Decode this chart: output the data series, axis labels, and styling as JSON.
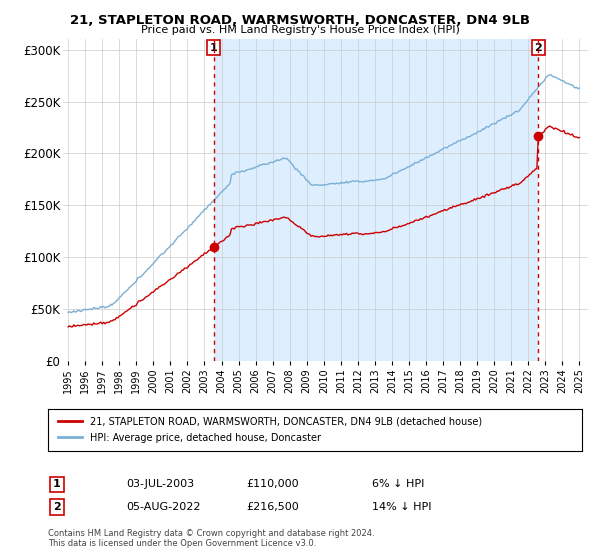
{
  "title1": "21, STAPLETON ROAD, WARMSWORTH, DONCASTER, DN4 9LB",
  "title2": "Price paid vs. HM Land Registry's House Price Index (HPI)",
  "ylabel_ticks": [
    "£0",
    "£50K",
    "£100K",
    "£150K",
    "£200K",
    "£250K",
    "£300K"
  ],
  "ytick_values": [
    0,
    50000,
    100000,
    150000,
    200000,
    250000,
    300000
  ],
  "ylim": [
    0,
    310000
  ],
  "sale1_year": 2003.542,
  "sale1_value": 110000,
  "sale2_year": 2022.583,
  "sale2_value": 216500,
  "legend_red_label": "21, STAPLETON ROAD, WARMSWORTH, DONCASTER, DN4 9LB (detached house)",
  "legend_blue_label": "HPI: Average price, detached house, Doncaster",
  "annot1_date": "03-JUL-2003",
  "annot1_price": "£110,000",
  "annot1_hpi": "6% ↓ HPI",
  "annot2_date": "05-AUG-2022",
  "annot2_price": "£216,500",
  "annot2_hpi": "14% ↓ HPI",
  "copyright": "Contains HM Land Registry data © Crown copyright and database right 2024.\nThis data is licensed under the Open Government Licence v3.0.",
  "hpi_color": "#7bafd4",
  "sale_color": "#cc0000",
  "dashed_color": "#cc0000",
  "bg_color": "#ffffff",
  "grid_color": "#cccccc",
  "shaded_bg": "#ddeeff",
  "xlim_left": 1994.7,
  "xlim_right": 2025.5
}
